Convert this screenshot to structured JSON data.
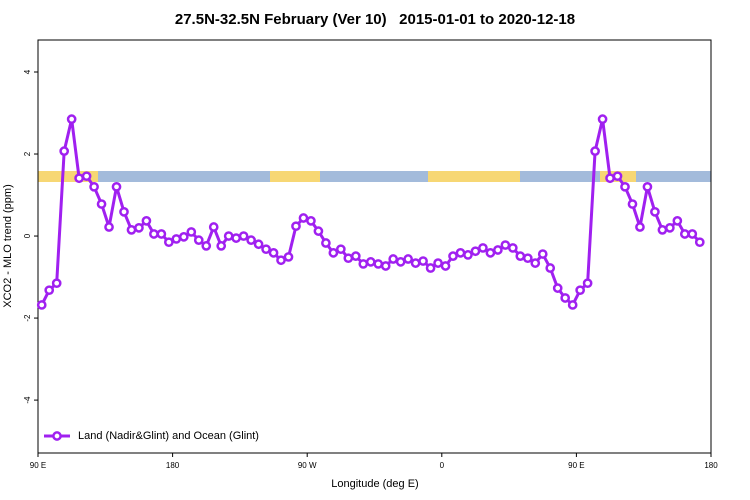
{
  "chart_data": {
    "type": "line",
    "title": "27.5N-32.5N February (Ver 10)   2015-01-01 to 2020-12-18",
    "x_label": "Longitude (deg E)",
    "y_label": "XCO2 - MLO trend (ppm)",
    "x": [
      92.5,
      97.5,
      102.5,
      107.5,
      112.5,
      117.5,
      122.5,
      127.5,
      132.5,
      137.5,
      142.5,
      147.5,
      152.5,
      157.5,
      162.5,
      167.5,
      172.5,
      177.5,
      182.5,
      187.5,
      192.5,
      197.5,
      202.5,
      207.5,
      212.5,
      217.5,
      222.5,
      227.5,
      232.5,
      237.5,
      242.5,
      247.5,
      252.5,
      257.5,
      262.5,
      267.5,
      272.5,
      277.5,
      282.5,
      287.5,
      292.5,
      297.5,
      302.5,
      307.5,
      312.5,
      317.5,
      322.5,
      327.5,
      332.5,
      337.5,
      342.5,
      347.5,
      352.5,
      357.5,
      362.5,
      367.5,
      372.5,
      377.5,
      382.5,
      387.5,
      392.5,
      397.5,
      402.5,
      407.5,
      412.5,
      417.5,
      422.5,
      427.5,
      432.5,
      437.5,
      442.5,
      447.5,
      452.5,
      457.5,
      462.5,
      467.5,
      472.5,
      477.5,
      482.5,
      487.5,
      492.5,
      497.5,
      502.5,
      507.5,
      512.5,
      517.5,
      522.5,
      527.5,
      532.5
    ],
    "series": [
      {
        "name": "Land (Nadir&Glint) and Ocean (Glint)",
        "color": "#a020f0",
        "values": [
          -1.68,
          -1.32,
          -1.15,
          2.07,
          2.85,
          1.41,
          1.46,
          1.2,
          0.78,
          0.22,
          1.2,
          0.59,
          0.15,
          0.2,
          0.37,
          0.05,
          0.05,
          -0.15,
          -0.07,
          -0.02,
          0.1,
          -0.1,
          -0.24,
          0.22,
          -0.24,
          0,
          -0.05,
          0,
          -0.1,
          -0.2,
          -0.32,
          -0.41,
          -0.59,
          -0.51,
          0.24,
          0.44,
          0.37,
          0.12,
          -0.17,
          -0.41,
          -0.32,
          -0.54,
          -0.49,
          -0.68,
          -0.63,
          -0.68,
          -0.73,
          -0.56,
          -0.63,
          -0.56,
          -0.66,
          -0.61,
          -0.78,
          -0.66,
          -0.73,
          -0.49,
          -0.41,
          -0.46,
          -0.37,
          -0.29,
          -0.41,
          -0.34,
          -0.22,
          -0.29,
          -0.49,
          -0.54,
          -0.66,
          -0.44,
          -0.78,
          -1.27,
          -1.51,
          -1.68,
          -1.32,
          -1.15,
          2.07,
          2.85,
          1.41,
          1.46,
          1.2,
          0.78,
          0.22,
          1.2,
          0.59,
          0.15,
          0.2,
          0.37,
          0.05,
          0.05,
          -0.15
        ]
      }
    ],
    "xlim": [
      90,
      540
    ],
    "xticks": [
      {
        "value": 90,
        "label": "90 E"
      },
      180,
      {
        "value": 270,
        "label": "90 W"
      },
      {
        "value": 360,
        "label": "0"
      },
      {
        "value": 450,
        "label": "90 E"
      },
      {
        "value": 540,
        "label": "180"
      }
    ],
    "ylim": [
      -5.29,
      4.78
    ],
    "yticks": [
      -4,
      -2,
      0,
      2,
      4
    ],
    "legend": "bottomleft"
  }
}
